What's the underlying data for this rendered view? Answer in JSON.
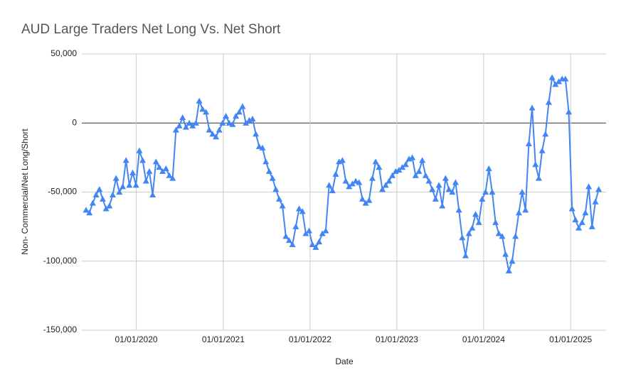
{
  "chart_data": {
    "type": "line",
    "title": "AUD Large Traders Net Long Vs. Net Short",
    "x_label": "Date",
    "y_label": "Non- Commercial/Net Long/Short",
    "x": [
      "2019-06-04",
      "2019-06-18",
      "2019-07-02",
      "2019-07-16",
      "2019-07-30",
      "2019-08-13",
      "2019-08-27",
      "2019-09-10",
      "2019-09-24",
      "2019-10-08",
      "2019-10-22",
      "2019-11-05",
      "2019-11-19",
      "2019-12-03",
      "2019-12-17",
      "2019-12-31",
      "2020-01-14",
      "2020-01-28",
      "2020-02-11",
      "2020-02-25",
      "2020-03-10",
      "2020-03-24",
      "2020-04-07",
      "2020-04-21",
      "2020-05-05",
      "2020-05-19",
      "2020-06-02",
      "2020-06-16",
      "2020-06-30",
      "2020-07-14",
      "2020-07-28",
      "2020-08-11",
      "2020-08-25",
      "2020-09-08",
      "2020-09-22",
      "2020-10-06",
      "2020-10-20",
      "2020-11-03",
      "2020-11-17",
      "2020-12-01",
      "2020-12-15",
      "2020-12-29",
      "2021-01-12",
      "2021-01-26",
      "2021-02-09",
      "2021-02-23",
      "2021-03-09",
      "2021-03-23",
      "2021-04-06",
      "2021-04-20",
      "2021-05-04",
      "2021-05-18",
      "2021-06-01",
      "2021-06-15",
      "2021-06-29",
      "2021-07-13",
      "2021-07-27",
      "2021-08-10",
      "2021-08-24",
      "2021-09-07",
      "2021-09-21",
      "2021-10-05",
      "2021-10-19",
      "2021-11-02",
      "2021-11-16",
      "2021-11-30",
      "2021-12-14",
      "2021-12-28",
      "2022-01-11",
      "2022-01-25",
      "2022-02-08",
      "2022-02-22",
      "2022-03-08",
      "2022-03-22",
      "2022-04-05",
      "2022-04-19",
      "2022-05-03",
      "2022-05-17",
      "2022-05-31",
      "2022-06-14",
      "2022-06-28",
      "2022-07-12",
      "2022-07-26",
      "2022-08-09",
      "2022-08-23",
      "2022-09-06",
      "2022-09-20",
      "2022-10-04",
      "2022-10-18",
      "2022-11-01",
      "2022-11-15",
      "2022-11-29",
      "2022-12-13",
      "2022-12-27",
      "2023-01-10",
      "2023-01-24",
      "2023-02-07",
      "2023-02-21",
      "2023-03-07",
      "2023-03-21",
      "2023-04-04",
      "2023-04-18",
      "2023-05-02",
      "2023-05-16",
      "2023-05-30",
      "2023-06-13",
      "2023-06-27",
      "2023-07-11",
      "2023-07-25",
      "2023-08-08",
      "2023-08-22",
      "2023-09-05",
      "2023-09-19",
      "2023-10-03",
      "2023-10-17",
      "2023-10-31",
      "2023-11-14",
      "2023-11-28",
      "2023-12-12",
      "2023-12-26",
      "2024-01-09",
      "2024-01-23",
      "2024-02-06",
      "2024-02-20",
      "2024-03-05",
      "2024-03-19",
      "2024-04-02",
      "2024-04-16",
      "2024-04-30",
      "2024-05-14",
      "2024-05-28",
      "2024-06-11",
      "2024-06-25",
      "2024-07-09",
      "2024-07-23",
      "2024-08-06",
      "2024-08-20",
      "2024-09-03",
      "2024-09-17",
      "2024-10-01",
      "2024-10-15",
      "2024-10-29",
      "2024-11-12",
      "2024-11-26",
      "2024-12-10",
      "2024-12-24",
      "2025-01-07",
      "2025-01-21",
      "2025-02-04",
      "2025-02-18",
      "2025-03-04",
      "2025-03-18",
      "2025-04-01",
      "2025-04-15",
      "2025-04-29"
    ],
    "series": [
      {
        "name": "Non- Commercial/Net Long/Short",
        "color": "#4285f4",
        "marker": "triangle",
        "values": [
          -63000,
          -65000,
          -58000,
          -52000,
          -48000,
          -55000,
          -62000,
          -60000,
          -52000,
          -40000,
          -50000,
          -46000,
          -27000,
          -45000,
          -36000,
          -45000,
          -20000,
          -27000,
          -42000,
          -35000,
          -52000,
          -28000,
          -32000,
          -35000,
          -33000,
          -38000,
          -40000,
          -5000,
          -2000,
          4000,
          -3000,
          0,
          -2000,
          0,
          16000,
          10000,
          8000,
          -5000,
          -8000,
          -10000,
          -5000,
          0,
          5000,
          0,
          -1000,
          5000,
          8000,
          12000,
          0,
          2000,
          3000,
          -8000,
          -17000,
          -18000,
          -28000,
          -35000,
          -40000,
          -48000,
          -55000,
          -60000,
          -82000,
          -85000,
          -88000,
          -75000,
          -62000,
          -64000,
          -80000,
          -78000,
          -88000,
          -90000,
          -86000,
          -80000,
          -78000,
          -45000,
          -49000,
          -37000,
          -28000,
          -27000,
          -42000,
          -46000,
          -44000,
          -42000,
          -43000,
          -55000,
          -58000,
          -56000,
          -40000,
          -28000,
          -32000,
          -48000,
          -45000,
          -42000,
          -38000,
          -35000,
          -34000,
          -32000,
          -30000,
          -26000,
          -25000,
          -38000,
          -35000,
          -27000,
          -38000,
          -42000,
          -48000,
          -55000,
          -45000,
          -60000,
          -40000,
          -48000,
          -50000,
          -43000,
          -63000,
          -83000,
          -96000,
          -80000,
          -76000,
          -66000,
          -72000,
          -55000,
          -50000,
          -33000,
          -50000,
          -72000,
          -80000,
          -82000,
          -95000,
          -107000,
          -100000,
          -82000,
          -65000,
          -50000,
          -63000,
          -15000,
          11000,
          -30000,
          -40000,
          -20000,
          -8000,
          15000,
          33000,
          28000,
          30000,
          32000,
          32000,
          8000,
          -62000,
          -70000,
          -76000,
          -72000,
          -65000,
          -46000,
          -75000,
          -57000,
          -48000
        ]
      }
    ],
    "xlim": [
      "2019-05-17",
      "2025-05-30"
    ],
    "xticks": [
      {
        "value": "2020-01-01",
        "label": "01/01/2020"
      },
      {
        "value": "2021-01-01",
        "label": "01/01/2021"
      },
      {
        "value": "2022-01-01",
        "label": "01/01/2022"
      },
      {
        "value": "2023-01-01",
        "label": "01/01/2023"
      },
      {
        "value": "2024-01-01",
        "label": "01/01/2024"
      },
      {
        "value": "2025-01-01",
        "label": "01/01/2025"
      }
    ],
    "ylim": [
      -150000,
      50000
    ],
    "yticks": [
      {
        "value": -150000,
        "label": "-150,000"
      },
      {
        "value": -100000,
        "label": "-100,000"
      },
      {
        "value": -50000,
        "label": "-50,000"
      },
      0,
      {
        "value": 50000,
        "label": "50,000"
      }
    ],
    "grid": true
  }
}
